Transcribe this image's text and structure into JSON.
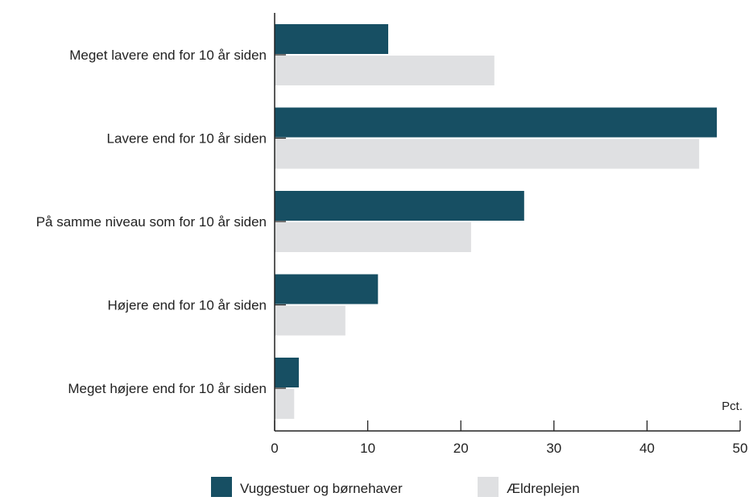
{
  "chart_data": {
    "type": "bar",
    "orientation": "horizontal",
    "categories": [
      "Meget lavere end for 10 år siden",
      "Lavere end for 10 år siden",
      "På samme niveau som for 10 år siden",
      "Højere end for 10 år siden",
      "Meget højere end for 10 år siden"
    ],
    "series": [
      {
        "name": "Vuggestuer og børnehaver",
        "color": "#174f63",
        "values": [
          12.2,
          47.5,
          26.8,
          11.1,
          2.6
        ]
      },
      {
        "name": "Ældreplejen",
        "color": "#dfe0e2",
        "values": [
          23.6,
          45.6,
          21.1,
          7.6,
          2.1
        ]
      }
    ],
    "xlim": [
      0,
      50
    ],
    "xticks": [
      0,
      10,
      20,
      30,
      40,
      50
    ],
    "xunit": "Pct.",
    "grid": false,
    "legend_position": "bottom"
  }
}
